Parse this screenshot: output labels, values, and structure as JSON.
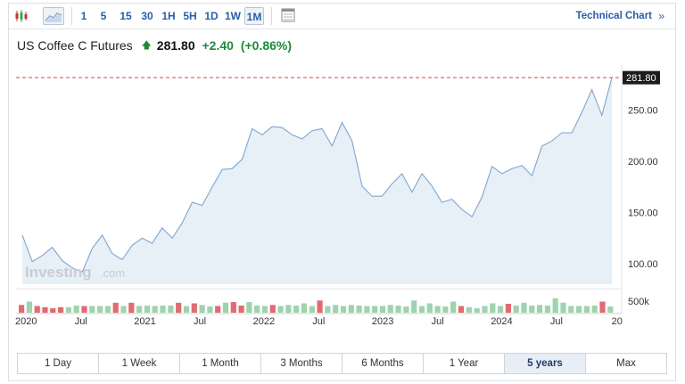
{
  "toolbar": {
    "candle_icon": "candlestick-icon",
    "area_icon": "area-chart-icon",
    "intervals": [
      "1",
      "5",
      "15",
      "30",
      "1H",
      "5H",
      "1D",
      "1W",
      "1M"
    ],
    "active_interval": "1M",
    "calendar_icon": "calendar-icon",
    "technical_chart_label": "Technical Chart",
    "technical_chart_arrow": "»"
  },
  "instrument": {
    "name": "US Coffee C Futures",
    "price": "281.80",
    "change": "+2.40",
    "change_pct": "(+0.86%)",
    "trend_icon": "up-arrow-icon",
    "up_color": "#1d8a3a"
  },
  "watermark": {
    "brand": "Investing",
    "suffix": ".com"
  },
  "range_buttons": [
    "1 Day",
    "1 Week",
    "1 Month",
    "3 Months",
    "6 Months",
    "1 Year",
    "5 years",
    "Max"
  ],
  "active_range": "5 years",
  "chart_data": {
    "type": "area",
    "title": "",
    "xlabel": "",
    "ylabel": "",
    "ylim": [
      80,
      295
    ],
    "yticks": [
      "100.00",
      "150.00",
      "200.00",
      "250.00"
    ],
    "ytick_values": [
      100,
      150,
      200,
      250
    ],
    "last_price_label": "281.80",
    "last_price": 281.8,
    "x_tick_labels": [
      "2020",
      "Jul",
      "2021",
      "Jul",
      "2022",
      "Jul",
      "2023",
      "Jul",
      "2024",
      "Jul",
      "20"
    ],
    "x_tick_months": [
      0,
      6,
      12,
      18,
      24,
      30,
      36,
      42,
      48,
      54,
      60
    ],
    "series": [
      {
        "values": [
          128,
          102,
          108,
          116,
          103,
          96,
          92,
          115,
          128,
          110,
          104,
          118,
          125,
          120,
          135,
          125,
          140,
          160,
          157,
          175,
          192,
          193,
          202,
          232,
          226,
          234,
          233,
          226,
          222,
          230,
          232,
          215,
          238,
          220,
          176,
          166,
          166,
          178,
          188,
          170,
          188,
          176,
          160,
          163,
          153,
          146,
          165,
          195,
          188,
          193,
          196,
          186,
          215,
          220,
          228,
          228,
          248,
          270,
          245,
          281.8
        ]
      }
    ],
    "volume": {
      "label": "500k",
      "values": [
        0.35,
        0.5,
        0.3,
        0.25,
        0.2,
        0.25,
        0.25,
        0.32,
        0.3,
        0.3,
        0.3,
        0.3,
        0.45,
        0.3,
        0.45,
        0.3,
        0.32,
        0.3,
        0.32,
        0.32,
        0.45,
        0.3,
        0.42,
        0.35,
        0.28,
        0.3,
        0.45,
        0.48,
        0.32,
        0.48,
        0.32,
        0.3,
        0.35,
        0.3,
        0.35,
        0.32,
        0.42,
        0.3,
        0.55,
        0.3,
        0.35,
        0.3,
        0.35,
        0.32,
        0.3,
        0.3,
        0.3,
        0.35,
        0.32,
        0.28,
        0.55,
        0.3,
        0.42,
        0.3,
        0.28,
        0.5,
        0.3,
        0.25,
        0.2,
        0.3,
        0.42,
        0.3,
        0.4,
        0.32,
        0.45,
        0.32,
        0.35,
        0.32,
        0.65,
        0.45,
        0.3,
        0.3,
        0.3,
        0.32,
        0.5,
        0.28
      ],
      "direction": [
        "down",
        "up",
        "down",
        "down",
        "down",
        "down",
        "up",
        "up",
        "down",
        "up",
        "up",
        "up",
        "down",
        "up",
        "down",
        "up",
        "up",
        "up",
        "up",
        "up",
        "down",
        "up",
        "down",
        "up",
        "up",
        "down",
        "up",
        "down",
        "down",
        "up",
        "up",
        "up",
        "down",
        "up",
        "up",
        "up",
        "up",
        "up",
        "down",
        "up",
        "up",
        "up",
        "up",
        "up",
        "up",
        "up",
        "up",
        "up",
        "up",
        "up",
        "up",
        "up",
        "up",
        "up",
        "up",
        "up",
        "down",
        "up",
        "up",
        "up",
        "up",
        "up",
        "down",
        "up",
        "up",
        "up",
        "up",
        "up",
        "up",
        "up",
        "up",
        "up",
        "up",
        "up",
        "down",
        "up"
      ],
      "up_color": "#9fd3ad",
      "down_color": "#e06b70"
    },
    "line_color": "#7fa6cf",
    "fill_color": "#e7eff7",
    "last_price_line_color": "#d64545",
    "grid": false
  }
}
